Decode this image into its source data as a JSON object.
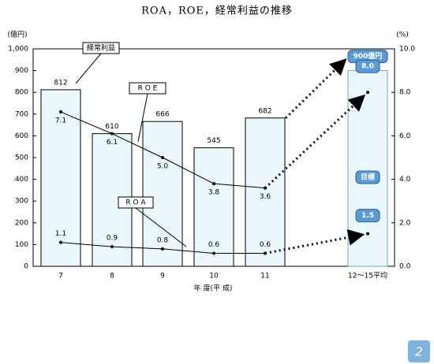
{
  "chart_data": {
    "type": "bar",
    "title": "ROA，ROE，経常利益の推移",
    "y_label": "(億円)",
    "y2_label": "(%)",
    "x_label": "年 度(平 成)",
    "categories": [
      "7",
      "8",
      "9",
      "10",
      "11",
      "12～15平均"
    ],
    "ylim": [
      0,
      1000
    ],
    "yticks": [
      0,
      100,
      200,
      300,
      400,
      500,
      600,
      700,
      800,
      900,
      {
        "value": 1000,
        "label": "1,000"
      }
    ],
    "y2lim": [
      0,
      10
    ],
    "y2ticks": [
      {
        "value": 0,
        "label": "0.0"
      },
      {
        "value": 2,
        "label": "2.0"
      },
      {
        "value": 4,
        "label": "4.0"
      },
      {
        "value": 6,
        "label": "6.0"
      },
      {
        "value": 8,
        "label": "8.0"
      },
      {
        "value": 10,
        "label": "10.0"
      }
    ],
    "series": [
      {
        "name": "経常利益",
        "type": "bar",
        "color": "#eaf8fb",
        "values": [
          812,
          610,
          666,
          545,
          682,
          900
        ],
        "value_labels": [
          "812",
          "610",
          "666",
          "545",
          "682",
          "900億円"
        ]
      },
      {
        "name": "R O E",
        "type": "line",
        "axis": "y2",
        "color": "#000000",
        "values": [
          7.1,
          6.1,
          5.0,
          3.8,
          3.6,
          8.0
        ],
        "value_labels": [
          "7.1",
          "6.1",
          "5.0",
          "3.8",
          "3.6",
          "8.0"
        ]
      },
      {
        "name": "R O A",
        "type": "line",
        "axis": "y2",
        "color": "#000000",
        "values": [
          1.1,
          0.9,
          0.8,
          0.6,
          0.6,
          1.5
        ],
        "value_labels": [
          "1.1",
          "0.9",
          "0.8",
          "0.6",
          "0.6",
          "1.5"
        ]
      }
    ],
    "target_label": "目標",
    "page_number": "2"
  }
}
